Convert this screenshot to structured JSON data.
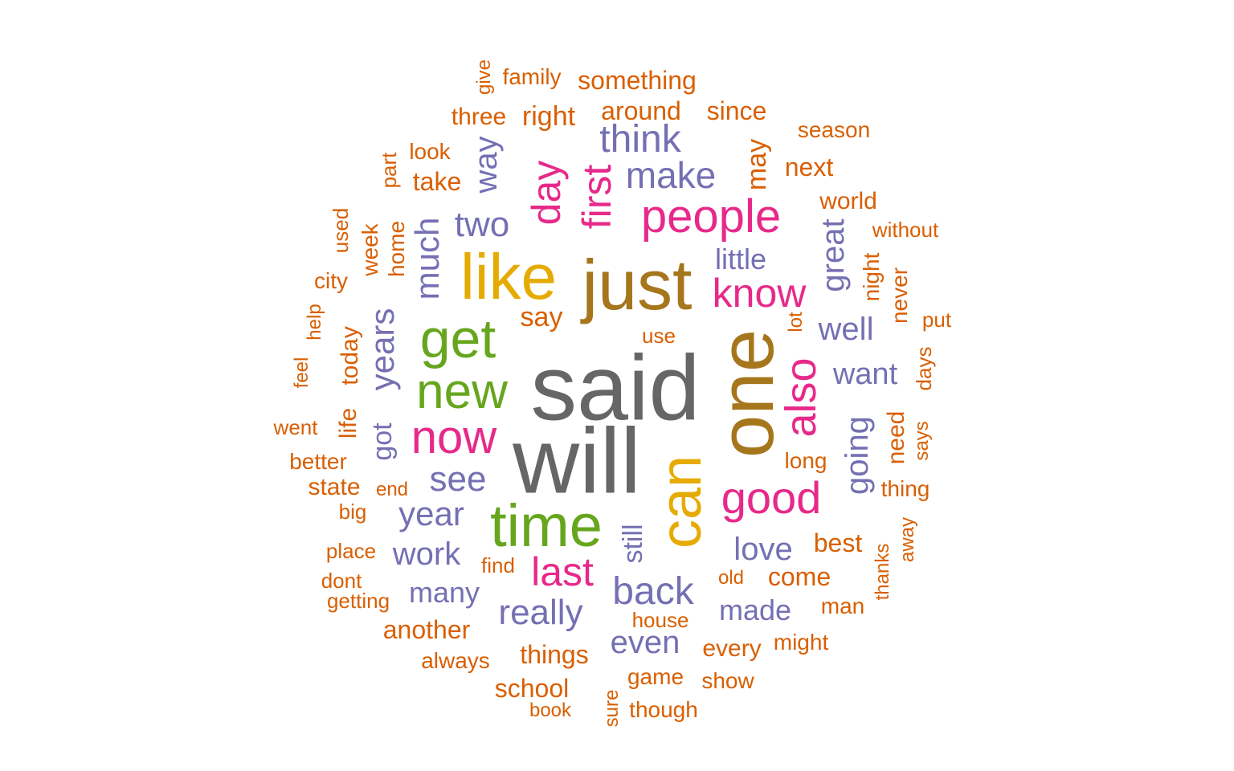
{
  "palette": {
    "grey": "#666666",
    "bronze": "#a6761d",
    "gold": "#e6ab02",
    "pink": "#e7298a",
    "purple": "#7570b3",
    "green": "#66a61e",
    "orange": "#d95f02"
  },
  "words": [
    {
      "text": "said",
      "color": "grey"
    },
    {
      "text": "will",
      "color": "grey"
    },
    {
      "text": "one",
      "color": "bronze"
    },
    {
      "text": "just",
      "color": "bronze"
    },
    {
      "text": "like",
      "color": "gold"
    },
    {
      "text": "can",
      "color": "gold"
    },
    {
      "text": "time",
      "color": "green"
    },
    {
      "text": "get",
      "color": "green"
    },
    {
      "text": "new",
      "color": "green"
    },
    {
      "text": "people",
      "color": "pink"
    },
    {
      "text": "now",
      "color": "pink"
    },
    {
      "text": "good",
      "color": "pink"
    },
    {
      "text": "know",
      "color": "pink"
    },
    {
      "text": "first",
      "color": "pink"
    },
    {
      "text": "day",
      "color": "pink"
    },
    {
      "text": "also",
      "color": "pink"
    },
    {
      "text": "last",
      "color": "pink"
    },
    {
      "text": "think",
      "color": "purple"
    },
    {
      "text": "make",
      "color": "purple"
    },
    {
      "text": "two",
      "color": "purple"
    },
    {
      "text": "way",
      "color": "purple"
    },
    {
      "text": "much",
      "color": "purple"
    },
    {
      "text": "years",
      "color": "purple"
    },
    {
      "text": "see",
      "color": "purple"
    },
    {
      "text": "year",
      "color": "purple"
    },
    {
      "text": "work",
      "color": "purple"
    },
    {
      "text": "back",
      "color": "purple"
    },
    {
      "text": "really",
      "color": "purple"
    },
    {
      "text": "even",
      "color": "purple"
    },
    {
      "text": "love",
      "color": "purple"
    },
    {
      "text": "made",
      "color": "purple"
    },
    {
      "text": "many",
      "color": "purple"
    },
    {
      "text": "going",
      "color": "purple"
    },
    {
      "text": "well",
      "color": "purple"
    },
    {
      "text": "want",
      "color": "purple"
    },
    {
      "text": "great",
      "color": "purple"
    },
    {
      "text": "got",
      "color": "purple"
    },
    {
      "text": "still",
      "color": "purple"
    },
    {
      "text": "little",
      "color": "purple"
    },
    {
      "text": "family",
      "color": "orange"
    },
    {
      "text": "something",
      "color": "orange"
    },
    {
      "text": "give",
      "color": "orange"
    },
    {
      "text": "three",
      "color": "orange"
    },
    {
      "text": "right",
      "color": "orange"
    },
    {
      "text": "around",
      "color": "orange"
    },
    {
      "text": "since",
      "color": "orange"
    },
    {
      "text": "season",
      "color": "orange"
    },
    {
      "text": "look",
      "color": "orange"
    },
    {
      "text": "part",
      "color": "orange"
    },
    {
      "text": "take",
      "color": "orange"
    },
    {
      "text": "may",
      "color": "orange"
    },
    {
      "text": "next",
      "color": "orange"
    },
    {
      "text": "world",
      "color": "orange"
    },
    {
      "text": "without",
      "color": "orange"
    },
    {
      "text": "used",
      "color": "orange"
    },
    {
      "text": "week",
      "color": "orange"
    },
    {
      "text": "home",
      "color": "orange"
    },
    {
      "text": "city",
      "color": "orange"
    },
    {
      "text": "night",
      "color": "orange"
    },
    {
      "text": "never",
      "color": "orange"
    },
    {
      "text": "say",
      "color": "orange"
    },
    {
      "text": "help",
      "color": "orange"
    },
    {
      "text": "today",
      "color": "orange"
    },
    {
      "text": "lot",
      "color": "orange"
    },
    {
      "text": "put",
      "color": "orange"
    },
    {
      "text": "use",
      "color": "orange"
    },
    {
      "text": "feel",
      "color": "orange"
    },
    {
      "text": "days",
      "color": "orange"
    },
    {
      "text": "life",
      "color": "orange"
    },
    {
      "text": "went",
      "color": "orange"
    },
    {
      "text": "need",
      "color": "orange"
    },
    {
      "text": "says",
      "color": "orange"
    },
    {
      "text": "better",
      "color": "orange"
    },
    {
      "text": "long",
      "color": "orange"
    },
    {
      "text": "state",
      "color": "orange"
    },
    {
      "text": "end",
      "color": "orange"
    },
    {
      "text": "thing",
      "color": "orange"
    },
    {
      "text": "big",
      "color": "orange"
    },
    {
      "text": "away",
      "color": "orange"
    },
    {
      "text": "place",
      "color": "orange"
    },
    {
      "text": "best",
      "color": "orange"
    },
    {
      "text": "find",
      "color": "orange"
    },
    {
      "text": "thanks",
      "color": "orange"
    },
    {
      "text": "dont",
      "color": "orange"
    },
    {
      "text": "old",
      "color": "orange"
    },
    {
      "text": "come",
      "color": "orange"
    },
    {
      "text": "getting",
      "color": "orange"
    },
    {
      "text": "man",
      "color": "orange"
    },
    {
      "text": "house",
      "color": "orange"
    },
    {
      "text": "another",
      "color": "orange"
    },
    {
      "text": "every",
      "color": "orange"
    },
    {
      "text": "might",
      "color": "orange"
    },
    {
      "text": "always",
      "color": "orange"
    },
    {
      "text": "things",
      "color": "orange"
    },
    {
      "text": "game",
      "color": "orange"
    },
    {
      "text": "show",
      "color": "orange"
    },
    {
      "text": "school",
      "color": "orange"
    },
    {
      "text": "sure",
      "color": "orange"
    },
    {
      "text": "book",
      "color": "orange"
    },
    {
      "text": "though",
      "color": "orange"
    }
  ]
}
